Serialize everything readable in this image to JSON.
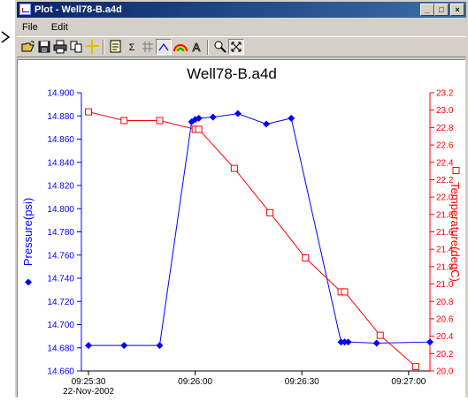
{
  "window": {
    "title": "Plot - Well78-B.a4d",
    "minimize_label": "_",
    "maximize_label": "□",
    "close_label": "×"
  },
  "menu": {
    "items": [
      "File",
      "Edit"
    ]
  },
  "toolbar": {
    "buttons": [
      "open-icon",
      "save-icon",
      "print-icon",
      "copy-icon",
      "crosshair-icon",
      "legend-icon",
      "sigma-icon",
      "grid-icon",
      "line-style-icon",
      "rainbow-icon",
      "font-icon",
      "zoom-icon",
      "zoom-fit-icon"
    ],
    "sigma_label": "Σ",
    "font_label": "A"
  },
  "colors": {
    "pressure": "#0000ff",
    "temperature": "#ff0000",
    "axis": "#000000"
  },
  "chart_data": {
    "type": "line",
    "title": "Well78-B.a4d",
    "x_tick_labels": [
      "09:25:30",
      "09:26:00",
      "09:26:30",
      "09:27:00"
    ],
    "x_tick_seconds": [
      0,
      30,
      60,
      90
    ],
    "x_start_date": "22-Nov-2002",
    "xlim_seconds": [
      -2,
      96
    ],
    "left_axis": {
      "label": "Pressure(psi)",
      "ylim": [
        14.66,
        14.9
      ],
      "ticks": [
        "14.660",
        "14.680",
        "14.700",
        "14.720",
        "14.740",
        "14.760",
        "14.780",
        "14.800",
        "14.820",
        "14.840",
        "14.860",
        "14.880",
        "14.900"
      ]
    },
    "right_axis": {
      "label": "Temperature(degC)",
      "ylim": [
        20.0,
        23.2
      ],
      "ticks": [
        "20.0",
        "20.2",
        "20.4",
        "20.6",
        "20.8",
        "21.0",
        "21.2",
        "21.4",
        "21.6",
        "21.8",
        "22.0",
        "22.2",
        "22.4",
        "22.6",
        "22.8",
        "23.0",
        "23.2"
      ]
    },
    "series": [
      {
        "name": "Pressure(psi)",
        "axis": "left",
        "marker": "diamond",
        "x": [
          0,
          10,
          20,
          29,
          30,
          31,
          35,
          42,
          50,
          57,
          71,
          72,
          73,
          81,
          96
        ],
        "y": [
          14.682,
          14.682,
          14.682,
          14.875,
          14.877,
          14.878,
          14.879,
          14.882,
          14.873,
          14.878,
          14.685,
          14.685,
          14.685,
          14.684,
          14.685
        ]
      },
      {
        "name": "Temperature(degC)",
        "axis": "right",
        "marker": "square",
        "x": [
          0,
          10,
          20,
          30,
          31,
          41,
          51,
          61,
          71,
          72,
          82,
          92
        ],
        "y": [
          22.98,
          22.88,
          22.88,
          22.78,
          22.78,
          22.33,
          21.82,
          21.3,
          20.91,
          20.91,
          20.41,
          20.05
        ]
      }
    ]
  }
}
